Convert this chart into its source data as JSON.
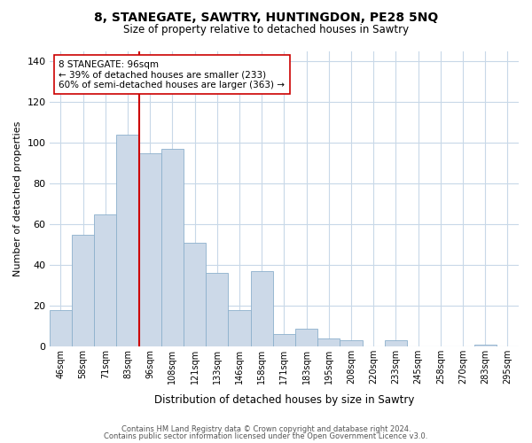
{
  "title": "8, STANEGATE, SAWTRY, HUNTINGDON, PE28 5NQ",
  "subtitle": "Size of property relative to detached houses in Sawtry",
  "xlabel": "Distribution of detached houses by size in Sawtry",
  "ylabel": "Number of detached properties",
  "bar_color": "#ccd9e8",
  "bar_edge_color": "#8cb0cc",
  "categories": [
    "46sqm",
    "58sqm",
    "71sqm",
    "83sqm",
    "96sqm",
    "108sqm",
    "121sqm",
    "133sqm",
    "146sqm",
    "158sqm",
    "171sqm",
    "183sqm",
    "195sqm",
    "208sqm",
    "220sqm",
    "233sqm",
    "245sqm",
    "258sqm",
    "270sqm",
    "283sqm",
    "295sqm"
  ],
  "values": [
    18,
    55,
    65,
    104,
    95,
    97,
    51,
    36,
    18,
    37,
    6,
    9,
    4,
    3,
    0,
    3,
    0,
    0,
    0,
    1,
    0
  ],
  "vline_color": "#cc0000",
  "vline_index": 4,
  "annotation_title": "8 STANEGATE: 96sqm",
  "annotation_line1": "← 39% of detached houses are smaller (233)",
  "annotation_line2": "60% of semi-detached houses are larger (363) →",
  "ylim": [
    0,
    145
  ],
  "yticks": [
    0,
    20,
    40,
    60,
    80,
    100,
    120,
    140
  ],
  "footer1": "Contains HM Land Registry data © Crown copyright and database right 2024.",
  "footer2": "Contains public sector information licensed under the Open Government Licence v3.0."
}
